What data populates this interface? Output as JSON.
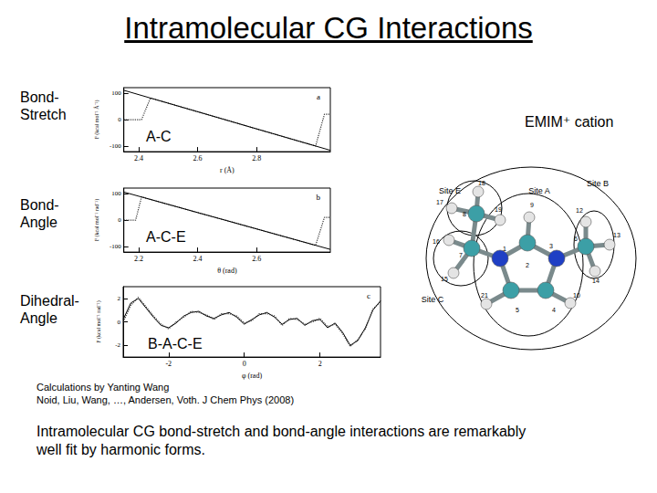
{
  "title": "Intramolecular CG Interactions",
  "rows": [
    "Bond-Stretch",
    "Bond-Angle",
    "Dihedral-Angle"
  ],
  "chart_data": [
    {
      "type": "line",
      "title": "A-C",
      "annotations": [
        "a"
      ],
      "xlabel": "r (Å)",
      "ylabel": "F (kcal mol⁻¹ Å⁻¹)",
      "xlim": [
        2.35,
        3.05
      ],
      "xticks": [
        2.4,
        2.6,
        2.8
      ],
      "ylim": [
        -120,
        120
      ],
      "yticks": [
        -100,
        0,
        100
      ],
      "grid": false,
      "series": [
        {
          "line_style": "dotted",
          "color": "#333333",
          "x": [
            2.35,
            2.41,
            2.44,
            2.5,
            2.6,
            2.7,
            2.8,
            2.9,
            3.0,
            3.03,
            3.05
          ],
          "values": [
            0,
            0,
            81,
            62,
            30,
            -2,
            -35,
            -67,
            -99,
            20,
            20
          ]
        },
        {
          "line_style": "solid",
          "color": "#000000",
          "x": [
            2.35,
            3.05
          ],
          "values": [
            110,
            -115
          ]
        }
      ]
    },
    {
      "type": "line",
      "title": "A-C-E",
      "annotations": [
        "b"
      ],
      "xlabel": "θ (rad)",
      "ylabel": "F (kcal mol⁻¹ rad⁻¹)",
      "xlim": [
        2.15,
        2.85
      ],
      "xticks": [
        2.2,
        2.4,
        2.6
      ],
      "ylim": [
        -120,
        120
      ],
      "yticks": [
        -100,
        0,
        100
      ],
      "grid": false,
      "series": [
        {
          "line_style": "dotted",
          "color": "#333333",
          "x": [
            2.15,
            2.19,
            2.21,
            2.3,
            2.4,
            2.5,
            2.6,
            2.7,
            2.8,
            2.83,
            2.85
          ],
          "values": [
            0,
            0,
            87,
            59,
            28,
            -2,
            -33,
            -64,
            -95,
            10,
            10
          ]
        },
        {
          "line_style": "solid",
          "color": "#000000",
          "x": [
            2.15,
            2.85
          ],
          "values": [
            105,
            -110
          ]
        }
      ]
    },
    {
      "type": "line",
      "title": "B-A-C-E",
      "annotations": [
        "c"
      ],
      "xlabel": "φ (rad)",
      "ylabel": "F (kcal mol⁻¹ rad⁻¹)",
      "xlim": [
        -3.2,
        3.6
      ],
      "xticks": [
        -2,
        0,
        2
      ],
      "ylim": [
        -3,
        3
      ],
      "yticks": [
        -2,
        0,
        2
      ],
      "grid": false,
      "series": [
        {
          "line_style": "solid",
          "color": "#000000",
          "x": [
            -3.2,
            -3.0,
            -2.8,
            -2.6,
            -2.4,
            -2.2,
            -2.0,
            -1.8,
            -1.6,
            -1.4,
            -1.2,
            -1.0,
            -0.8,
            -0.6,
            -0.4,
            -0.2,
            0,
            0.2,
            0.4,
            0.6,
            0.8,
            1.0,
            1.2,
            1.4,
            1.6,
            1.8,
            2.0,
            2.2,
            2.4,
            2.6,
            2.8,
            3.0,
            3.2,
            3.4,
            3.6
          ],
          "values": [
            0.2,
            1.6,
            2.0,
            1.2,
            0.4,
            -0.3,
            -0.5,
            -0.1,
            0.5,
            0.8,
            0.9,
            0.5,
            0.3,
            0.6,
            0.8,
            0.4,
            -0.2,
            0.2,
            0.6,
            0.8,
            0.4,
            -0.2,
            0.2,
            0.3,
            -0.3,
            0.1,
            0.2,
            -0.5,
            -0.1,
            -0.9,
            -2.0,
            -1.6,
            -0.5,
            1.0,
            1.8
          ]
        },
        {
          "line_style": "dotted",
          "color": "#333333",
          "x": [
            -3.2,
            -3.0,
            -2.8,
            -2.6,
            -2.4,
            -2.2,
            -2.0,
            -1.8,
            -1.6,
            -1.4,
            -1.2,
            -1.0,
            -0.8,
            -0.6,
            -0.4,
            -0.2,
            0,
            0.2,
            0.4,
            0.6,
            0.8,
            1.0,
            1.2,
            1.4,
            1.6,
            1.8,
            2.0,
            2.2,
            2.4,
            2.6,
            2.8,
            3.0,
            3.2,
            3.4,
            3.6
          ],
          "values": [
            0.0,
            1.4,
            2.1,
            1.3,
            0.5,
            -0.2,
            -0.6,
            0.0,
            0.4,
            0.9,
            0.8,
            0.6,
            0.2,
            0.7,
            0.7,
            0.5,
            -0.1,
            0.1,
            0.7,
            0.7,
            0.5,
            -0.3,
            0.3,
            0.2,
            -0.2,
            0.0,
            0.3,
            -0.4,
            -0.2,
            -1.0,
            -2.1,
            -1.5,
            -0.6,
            1.1,
            1.7
          ]
        }
      ]
    }
  ],
  "molecule": {
    "label": "EMIM⁺ cation",
    "sites": [
      "Site E",
      "Site A",
      "Site B",
      "Site C"
    ],
    "atom_labels": [
      "1",
      "2",
      "3",
      "4",
      "5",
      "6",
      "7",
      "8",
      "9",
      "10",
      "12",
      "13",
      "14",
      "15",
      "16",
      "17",
      "18",
      "19",
      "21"
    ]
  },
  "citation": [
    "Calculations by Yanting Wang",
    "Noid, Liu, Wang, …, Andersen, Voth.  J Chem Phys (2008)"
  ],
  "caption": "Intramolecular CG bond-stretch and bond-angle interactions are remarkably well fit by harmonic forms."
}
